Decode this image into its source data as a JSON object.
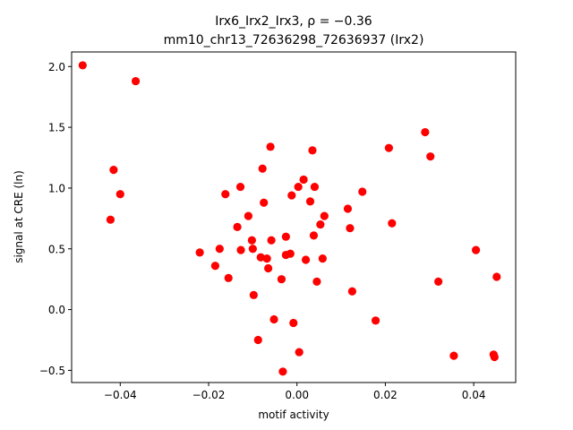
{
  "chart_data": {
    "type": "scatter",
    "title_line1": "Irx6_Irx2_Irx3, ρ = −0.36",
    "title_line2": "mm10_chr13_72636298_72636937 (Irx2)",
    "xlabel": "motif activity",
    "ylabel": "signal at CRE (ln)",
    "xlim": [
      -0.051,
      0.0495
    ],
    "ylim": [
      -0.6,
      2.12
    ],
    "xticks": [
      -0.04,
      -0.02,
      0.0,
      0.02,
      0.04
    ],
    "xtick_labels": [
      "−0.04",
      "−0.02",
      "0.00",
      "0.02",
      "0.04"
    ],
    "yticks": [
      -0.5,
      0.0,
      0.5,
      1.0,
      1.5,
      2.0
    ],
    "ytick_labels": [
      "−0.5",
      "0.0",
      "0.5",
      "1.0",
      "1.5",
      "2.0"
    ],
    "grid": false,
    "marker_color": "#ff0000",
    "points": [
      {
        "x": -0.0485,
        "y": 2.01
      },
      {
        "x": -0.0365,
        "y": 1.88
      },
      {
        "x": -0.0415,
        "y": 1.15
      },
      {
        "x": -0.04,
        "y": 0.95
      },
      {
        "x": -0.0422,
        "y": 0.74
      },
      {
        "x": -0.022,
        "y": 0.47
      },
      {
        "x": -0.0185,
        "y": 0.36
      },
      {
        "x": -0.0175,
        "y": 0.5
      },
      {
        "x": -0.0162,
        "y": 0.95
      },
      {
        "x": -0.0155,
        "y": 0.26
      },
      {
        "x": -0.0135,
        "y": 0.68
      },
      {
        "x": -0.0128,
        "y": 1.01
      },
      {
        "x": -0.0127,
        "y": 0.49
      },
      {
        "x": -0.011,
        "y": 0.77
      },
      {
        "x": -0.0102,
        "y": 0.57
      },
      {
        "x": -0.01,
        "y": 0.5
      },
      {
        "x": -0.0098,
        "y": 0.12
      },
      {
        "x": -0.0088,
        "y": -0.25
      },
      {
        "x": -0.0082,
        "y": 0.43
      },
      {
        "x": -0.0078,
        "y": 1.16
      },
      {
        "x": -0.0075,
        "y": 0.88
      },
      {
        "x": -0.0068,
        "y": 0.42
      },
      {
        "x": -0.0065,
        "y": 0.34
      },
      {
        "x": -0.006,
        "y": 1.34
      },
      {
        "x": -0.0058,
        "y": 0.57
      },
      {
        "x": -0.0052,
        "y": -0.08
      },
      {
        "x": -0.0035,
        "y": 0.25
      },
      {
        "x": -0.0032,
        "y": -0.51
      },
      {
        "x": -0.0025,
        "y": 0.6
      },
      {
        "x": -0.0025,
        "y": 0.45
      },
      {
        "x": -0.0015,
        "y": 0.46
      },
      {
        "x": -0.0012,
        "y": 0.94
      },
      {
        "x": -0.0008,
        "y": -0.11
      },
      {
        "x": 0.0003,
        "y": 1.01
      },
      {
        "x": 0.0005,
        "y": -0.35
      },
      {
        "x": 0.0015,
        "y": 1.07
      },
      {
        "x": 0.002,
        "y": 0.41
      },
      {
        "x": 0.003,
        "y": 0.89
      },
      {
        "x": 0.0035,
        "y": 1.31
      },
      {
        "x": 0.0038,
        "y": 0.61
      },
      {
        "x": 0.004,
        "y": 1.01
      },
      {
        "x": 0.0045,
        "y": 0.23
      },
      {
        "x": 0.0053,
        "y": 0.7
      },
      {
        "x": 0.0058,
        "y": 0.42
      },
      {
        "x": 0.0062,
        "y": 0.77
      },
      {
        "x": 0.0115,
        "y": 0.83
      },
      {
        "x": 0.012,
        "y": 0.67
      },
      {
        "x": 0.0125,
        "y": 0.15
      },
      {
        "x": 0.0148,
        "y": 0.97
      },
      {
        "x": 0.0178,
        "y": -0.09
      },
      {
        "x": 0.0208,
        "y": 1.33
      },
      {
        "x": 0.0215,
        "y": 0.71
      },
      {
        "x": 0.029,
        "y": 1.46
      },
      {
        "x": 0.0302,
        "y": 1.26
      },
      {
        "x": 0.032,
        "y": 0.23
      },
      {
        "x": 0.0355,
        "y": -0.38
      },
      {
        "x": 0.0405,
        "y": 0.49
      },
      {
        "x": 0.0445,
        "y": -0.37
      },
      {
        "x": 0.0447,
        "y": -0.39
      },
      {
        "x": 0.0452,
        "y": 0.27
      }
    ]
  }
}
